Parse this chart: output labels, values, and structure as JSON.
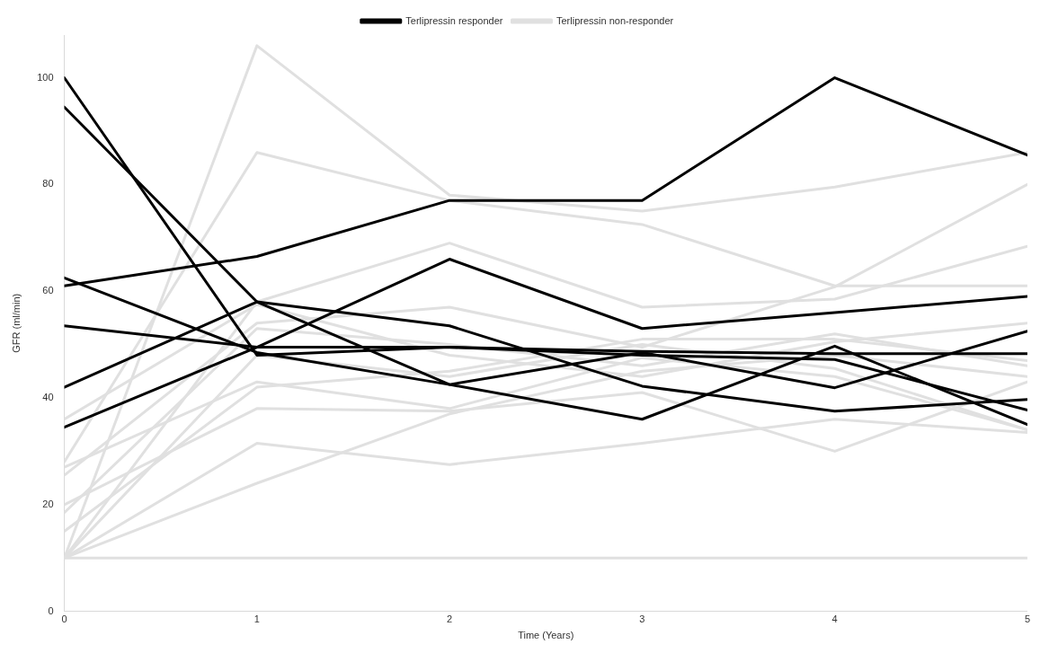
{
  "chart_data": {
    "type": "line",
    "xlabel": "Time (Years)",
    "ylabel": "GFR (ml/min)",
    "x": [
      0,
      1,
      2,
      3,
      4,
      5
    ],
    "xlim": [
      0,
      5
    ],
    "xticks": [
      0,
      1,
      2,
      3,
      4,
      5
    ],
    "ylim": [
      0,
      108
    ],
    "yticks": [
      0,
      20,
      40,
      60,
      80,
      100
    ],
    "grid": false,
    "legend": "top",
    "marker": "none",
    "line_style": "solid",
    "series": [
      {
        "name": "Terlipressin responder",
        "color": "#000000",
        "values": [
          61,
          66.5,
          77,
          77,
          100,
          85.5
        ]
      },
      {
        "color": "#000000",
        "values": [
          100,
          48,
          49.5,
          48.7,
          48.3,
          48.3
        ]
      },
      {
        "color": "#000000",
        "values": [
          94.5,
          58,
          42.5,
          36,
          49.7,
          35
        ]
      },
      {
        "color": "#000000",
        "values": [
          42,
          58,
          53.5,
          42.2,
          37.5,
          39.7
        ]
      },
      {
        "color": "#000000",
        "values": [
          34.5,
          49.5,
          66,
          53,
          56,
          59
        ]
      },
      {
        "color": "#000000",
        "values": [
          62.5,
          48.5,
          42.5,
          48.5,
          41.9,
          52.5
        ]
      },
      {
        "color": "#000000",
        "values": [
          53.5,
          49.5,
          49.5,
          48,
          47.2,
          37.7
        ]
      },
      {
        "name": "Terlipressin non-responder",
        "color": "#e0e0e0",
        "values": [
          10,
          106,
          78,
          75,
          79.5,
          86
        ]
      },
      {
        "color": "#e0e0e0",
        "values": [
          28,
          86,
          77,
          72.5,
          61,
          61
        ]
      },
      {
        "color": "#e0e0e0",
        "values": [
          10,
          58,
          69,
          57,
          58.5,
          68.4
        ]
      },
      {
        "color": "#e0e0e0",
        "values": [
          25.5,
          54,
          57,
          49.5,
          60.8,
          80
        ]
      },
      {
        "color": "#e0e0e0",
        "values": [
          18.5,
          53,
          50,
          46,
          52,
          46
        ]
      },
      {
        "color": "#e0e0e0",
        "values": [
          36,
          57.5,
          48,
          44,
          50.5,
          54
        ]
      },
      {
        "color": "#e0e0e0",
        "values": [
          27,
          43,
          38,
          47.5,
          44,
          34
        ]
      },
      {
        "color": "#e0e0e0",
        "values": [
          15,
          42,
          45,
          51,
          51,
          47
        ]
      },
      {
        "color": "#e0e0e0",
        "values": [
          20,
          38,
          37.5,
          41,
          30,
          43
        ]
      },
      {
        "color": "#e0e0e0",
        "values": [
          10,
          31.5,
          27.5,
          31.5,
          36,
          33.5
        ]
      },
      {
        "color": "#e0e0e0",
        "values": [
          10,
          24,
          37,
          45,
          48,
          44
        ]
      },
      {
        "color": "#e0e0e0",
        "values": [
          10,
          48,
          44,
          50,
          45.5,
          34
        ]
      },
      {
        "color": "#e0e0e0",
        "values": [
          10,
          10,
          10,
          10,
          10,
          10
        ]
      }
    ]
  }
}
